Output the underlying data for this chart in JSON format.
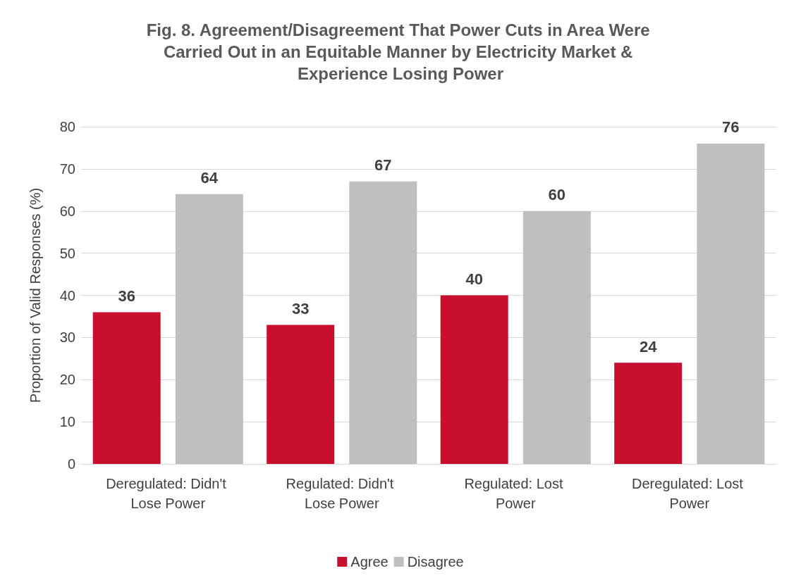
{
  "chart_data": {
    "type": "bar",
    "title": "Fig. 8. Agreement/Disagreement That Power Cuts in Area Were Carried Out in an Equitable Manner by Electricity Market & Experience Losing Power",
    "ylabel": "Proportion of Valid Responses (%)",
    "categories": [
      "Deregulated: Didn't Lose Power",
      "Regulated: Didn't Lose Power",
      "Regulated: Lost Power",
      "Deregulated: Lost Power"
    ],
    "series": [
      {
        "name": "Agree",
        "color": "#c8102e",
        "values": [
          36,
          33,
          40,
          24
        ]
      },
      {
        "name": "Disagree",
        "color": "#bfbfbf",
        "values": [
          64,
          67,
          60,
          76
        ]
      }
    ],
    "ylim": [
      0,
      80
    ],
    "yticks": [
      0,
      10,
      20,
      30,
      40,
      50,
      60,
      70,
      80
    ],
    "grid": "y",
    "legend": "bottom",
    "data_labels": true
  }
}
